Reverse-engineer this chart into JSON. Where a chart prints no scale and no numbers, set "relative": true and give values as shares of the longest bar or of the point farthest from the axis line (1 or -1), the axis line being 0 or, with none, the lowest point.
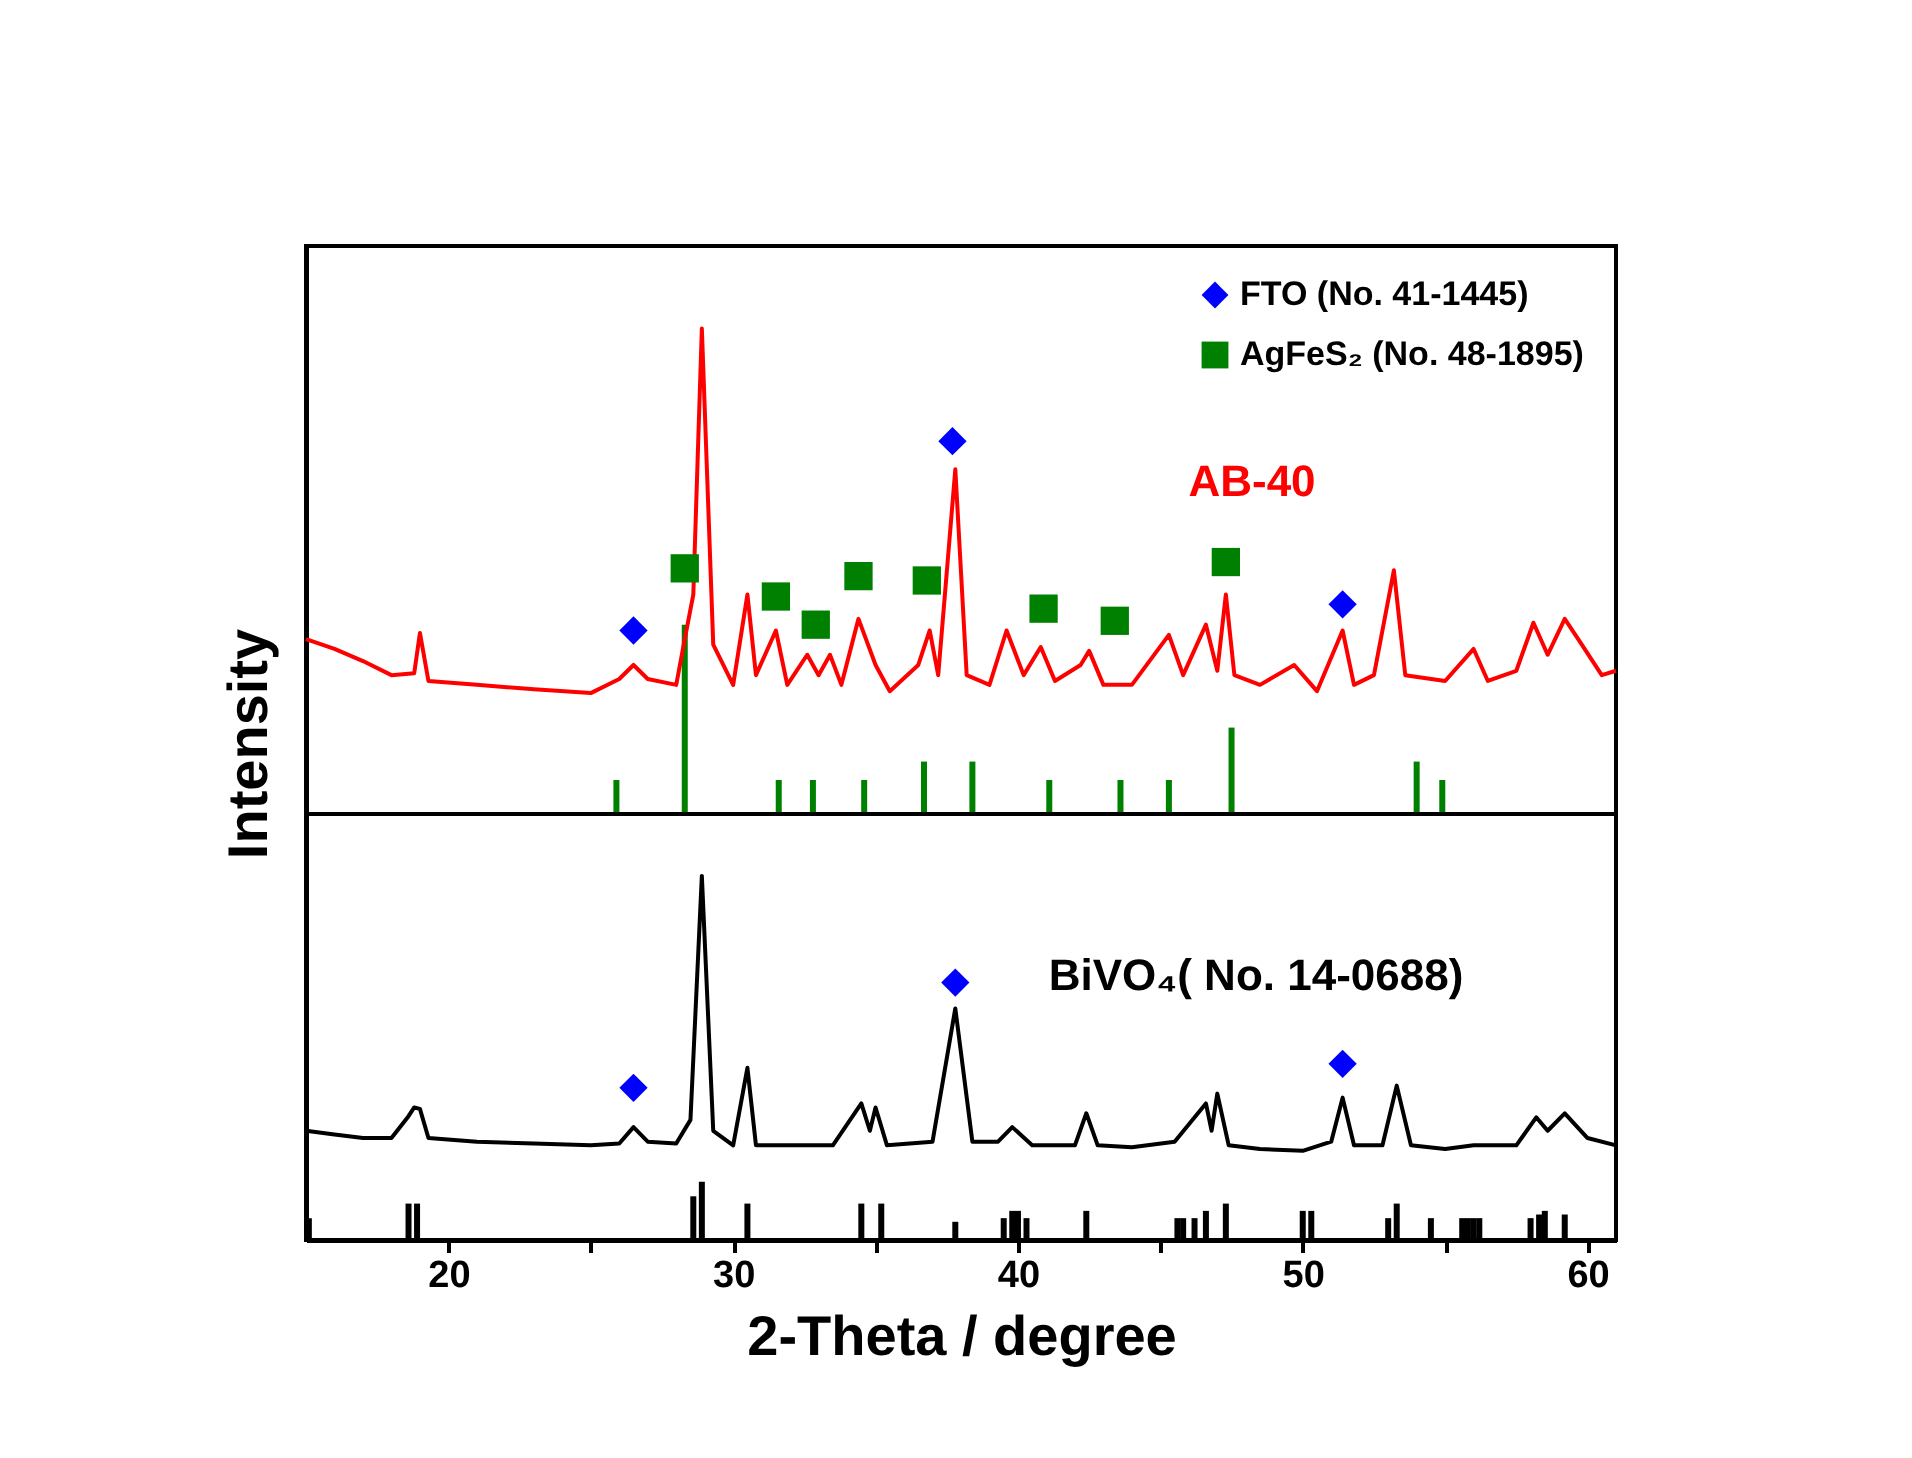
{
  "chart_data": [
    {
      "type": "line",
      "relative": true,
      "ylabel": "Intensity",
      "xlim": [
        15,
        61
      ],
      "tick_labels": false,
      "legend": "top right",
      "grid": false,
      "series": [
        {
          "name": "AB-40",
          "type": "line",
          "color": "#ff0000",
          "marker": "none",
          "line_style": "solid",
          "x": [
            15,
            16,
            17,
            18,
            18.8,
            19.0,
            19.3,
            21,
            23,
            25,
            26,
            26.5,
            27,
            28,
            28.3,
            28.6,
            28.9,
            29.3,
            30,
            30.5,
            30.8,
            31.5,
            31.9,
            32.6,
            33.0,
            33.4,
            33.8,
            34.4,
            35.0,
            35.5,
            36.5,
            36.9,
            37.2,
            37.8,
            38.2,
            39,
            39.6,
            40.2,
            40.8,
            41.3,
            42.2,
            42.5,
            43,
            44,
            45.3,
            45.8,
            46.6,
            47.0,
            47.3,
            47.6,
            48.5,
            49.7,
            50.5,
            51.4,
            51.8,
            52.5,
            53.2,
            53.6,
            55,
            56,
            56.5,
            57.5,
            58.1,
            58.6,
            59.2,
            59.8,
            60.5,
            61
          ],
          "values": [
            0.36,
            0.34,
            0.315,
            0.286,
            0.29,
            0.373,
            0.274,
            0.266,
            0.257,
            0.249,
            0.278,
            0.307,
            0.278,
            0.266,
            0.36,
            0.452,
            1.0,
            0.349,
            0.266,
            0.452,
            0.286,
            0.378,
            0.266,
            0.328,
            0.286,
            0.328,
            0.266,
            0.402,
            0.307,
            0.253,
            0.307,
            0.378,
            0.286,
            0.71,
            0.286,
            0.266,
            0.378,
            0.286,
            0.344,
            0.274,
            0.307,
            0.336,
            0.266,
            0.266,
            0.369,
            0.286,
            0.39,
            0.295,
            0.452,
            0.286,
            0.266,
            0.307,
            0.253,
            0.378,
            0.266,
            0.286,
            0.502,
            0.286,
            0.274,
            0.34,
            0.274,
            0.295,
            0.394,
            0.328,
            0.402,
            0.349,
            0.286,
            0.295
          ]
        },
        {
          "type": "bar",
          "color": "#008000",
          "x": [
            25.9,
            28.3,
            31.6,
            32.8,
            34.6,
            36.7,
            38.4,
            41.1,
            43.6,
            45.3,
            47.5,
            54.0,
            54.9
          ],
          "values": [
            0.07,
            0.39,
            0.07,
            0.07,
            0.07,
            0.108,
            0.108,
            0.07,
            0.07,
            0.07,
            0.178,
            0.108,
            0.07
          ]
        },
        {
          "name": "FTO (No. 41-1445)",
          "type": "scatter",
          "color": "#0000ff",
          "marker": "diamond",
          "x": [
            26.5,
            37.7,
            51.4
          ],
          "values": [
            0.378,
            0.768,
            0.432
          ]
        },
        {
          "name": "AgFeS₂ (No. 48-1895)",
          "type": "scatter",
          "color": "#008000",
          "marker": "square",
          "x": [
            28.3,
            31.5,
            32.9,
            34.4,
            36.8,
            40.9,
            43.4,
            47.3
          ],
          "values": [
            0.506,
            0.448,
            0.39,
            0.49,
            0.481,
            0.423,
            0.398,
            0.519
          ]
        }
      ]
    },
    {
      "type": "line",
      "relative": true,
      "xlabel": "2-Theta / degree",
      "xlim": [
        15,
        61
      ],
      "xticks": [
        20,
        {
          "value": 25,
          "label": null
        },
        30,
        {
          "value": 35,
          "label": null
        },
        40,
        {
          "value": 45,
          "label": null
        },
        50,
        {
          "value": 55,
          "label": null
        },
        60
      ],
      "tick_labels": "x",
      "grid": false,
      "series": [
        {
          "name": "BiVO₄( No. 14-0688)",
          "type": "line",
          "color": "#000000",
          "marker": "none",
          "line_style": "solid",
          "x": [
            15,
            16,
            17,
            18,
            18.6,
            18.8,
            19.0,
            19.3,
            21,
            23,
            25,
            26,
            26.5,
            27,
            28,
            28.5,
            28.9,
            29.3,
            30,
            30.5,
            30.8,
            32,
            33.5,
            34.5,
            34.8,
            35.0,
            35.4,
            37,
            37.8,
            38.4,
            39.3,
            39.8,
            40.5,
            42,
            42.4,
            42.8,
            44,
            45.5,
            46.6,
            46.8,
            47.0,
            47.4,
            48.5,
            50,
            51.0,
            51.4,
            51.8,
            52.8,
            53.3,
            53.8,
            55,
            56,
            57.5,
            58.2,
            58.6,
            59.2,
            60,
            61
          ],
          "values": [
            0.3,
            0.29,
            0.28,
            0.28,
            0.34,
            0.364,
            0.36,
            0.28,
            0.27,
            0.265,
            0.26,
            0.265,
            0.31,
            0.27,
            0.265,
            0.33,
            1.0,
            0.3,
            0.26,
            0.473,
            0.26,
            0.26,
            0.26,
            0.375,
            0.3,
            0.364,
            0.26,
            0.27,
            0.636,
            0.27,
            0.27,
            0.31,
            0.26,
            0.26,
            0.348,
            0.26,
            0.255,
            0.27,
            0.375,
            0.3,
            0.402,
            0.26,
            0.25,
            0.245,
            0.27,
            0.391,
            0.26,
            0.26,
            0.424,
            0.26,
            0.25,
            0.26,
            0.26,
            0.337,
            0.3,
            0.348,
            0.28,
            0.26
          ]
        },
        {
          "type": "bar",
          "color": "#000000",
          "x": [
            15.1,
            18.6,
            18.9,
            28.6,
            28.9,
            30.5,
            34.5,
            35.2,
            37.8,
            39.5,
            39.8,
            40.0,
            40.3,
            42.4,
            45.6,
            45.8,
            46.2,
            46.6,
            47.3,
            50.0,
            50.3,
            53.0,
            53.3,
            54.5,
            55.6,
            55.8,
            56.0,
            56.2,
            58.0,
            58.3,
            58.5,
            59.2
          ],
          "values": [
            0.06,
            0.1,
            0.1,
            0.12,
            0.16,
            0.1,
            0.1,
            0.1,
            0.05,
            0.06,
            0.08,
            0.08,
            0.06,
            0.08,
            0.06,
            0.06,
            0.06,
            0.08,
            0.1,
            0.08,
            0.08,
            0.06,
            0.1,
            0.06,
            0.06,
            0.06,
            0.06,
            0.06,
            0.06,
            0.07,
            0.08,
            0.07
          ]
        },
        {
          "type": "scatter",
          "color": "#0000ff",
          "marker": "diamond",
          "x": [
            26.5,
            37.8,
            51.4
          ],
          "values": [
            0.418,
            0.707,
            0.484
          ]
        }
      ]
    }
  ]
}
